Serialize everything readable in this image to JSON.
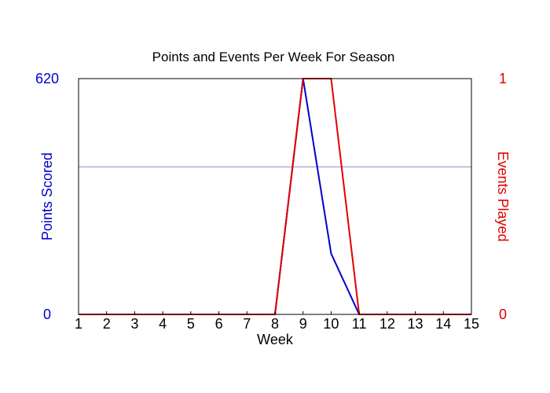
{
  "chart_data": {
    "type": "line",
    "title": "Points and Events Per Week For Season",
    "xlabel": "Week",
    "y_left_label": "Points Scored",
    "y_right_label": "Events Played",
    "x": [
      1,
      2,
      3,
      4,
      5,
      6,
      7,
      8,
      9,
      10,
      11,
      12,
      13,
      14,
      15
    ],
    "x_ticks": [
      "1",
      "2",
      "3",
      "4",
      "5",
      "6",
      "7",
      "8",
      "9",
      "10",
      "11",
      "12",
      "13",
      "14",
      "15"
    ],
    "y_left_ticks": [
      "0",
      "620"
    ],
    "y_right_ticks": [
      "0",
      "1"
    ],
    "y_left_range": [
      0,
      620
    ],
    "y_right_range": [
      0,
      1
    ],
    "reference_line": {
      "axis": "left",
      "value": 388
    },
    "series": [
      {
        "axis": "left",
        "color": "#0000cc",
        "values": [
          0,
          0,
          0,
          0,
          0,
          0,
          0,
          0,
          620,
          160,
          0,
          0,
          0,
          0,
          0
        ]
      },
      {
        "axis": "right",
        "color": "#e00000",
        "values": [
          0,
          0,
          0,
          0,
          0,
          0,
          0,
          0,
          1,
          1,
          0,
          0,
          0,
          0,
          0
        ]
      }
    ],
    "colors": {
      "left_axis": "#0000cc",
      "right_axis": "#e00000",
      "reference_line": "#8888cc",
      "frame": "#000000"
    }
  }
}
